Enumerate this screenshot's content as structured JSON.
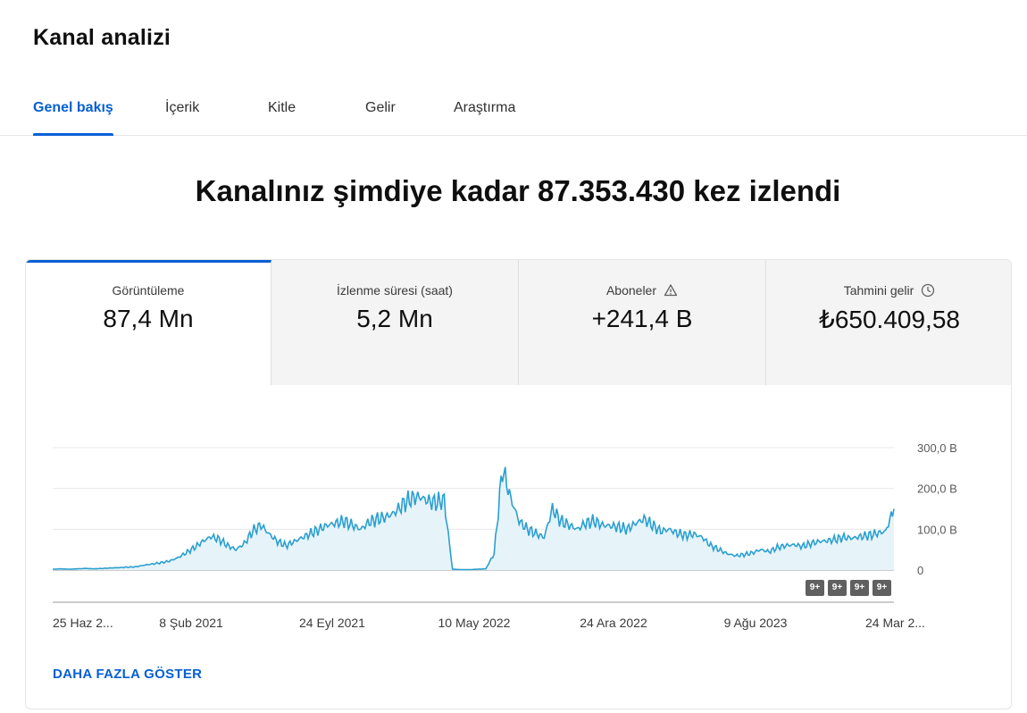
{
  "page": {
    "title": "Kanal analizi"
  },
  "tabs": [
    {
      "label": "Genel bakış",
      "active": true
    },
    {
      "label": "İçerik"
    },
    {
      "label": "Kitle"
    },
    {
      "label": "Gelir"
    },
    {
      "label": "Araştırma"
    }
  ],
  "headline": "Kanalınız şimdiye kadar 87.353.430 kez izlendi",
  "metrics": [
    {
      "label": "Görüntüleme",
      "value": "87,4 Mn",
      "active": true
    },
    {
      "label": "İzlenme süresi (saat)",
      "value": "5,2 Mn"
    },
    {
      "label": "Aboneler",
      "value": "+241,4 B",
      "icon": "warning-icon"
    },
    {
      "label": "Tahmini gelir",
      "value": "₺650.409,58",
      "icon": "clock-icon"
    }
  ],
  "chart_data": {
    "type": "area",
    "y_ticks": [
      "300,0 B",
      "200,0 B",
      "100,0 B",
      "0"
    ],
    "ylim": [
      0,
      300000
    ],
    "x_tick_labels": [
      "25 Haz 2...",
      "8 Şub 2021",
      "24 Eyl 2021",
      "10 May 2022",
      "24 Ara 2022",
      "9 Ağu 2023",
      "24 Mar 2..."
    ],
    "series": [
      {
        "values_thousands": [
          2,
          3,
          2,
          3,
          4,
          3,
          4,
          5,
          6,
          7,
          8,
          12,
          15,
          18,
          22,
          30,
          42,
          55,
          70,
          82,
          75,
          60,
          50,
          65,
          95,
          110,
          88,
          70,
          60,
          70,
          80,
          90,
          100,
          110,
          115,
          120,
          110,
          100,
          118,
          125,
          130,
          140,
          160,
          175,
          180,
          170,
          165,
          172,
          2,
          1,
          1,
          2,
          3,
          40,
          250,
          175,
          120,
          100,
          90,
          80,
          150,
          120,
          110,
          100,
          115,
          120,
          110,
          108,
          105,
          100,
          115,
          125,
          110,
          95,
          100,
          90,
          85,
          88,
          80,
          60,
          50,
          40,
          35,
          38,
          42,
          50,
          45,
          55,
          60,
          62,
          58,
          65,
          70,
          72,
          75,
          80,
          78,
          82,
          85,
          90,
          95,
          150
        ],
        "color": "#2a9fd0"
      }
    ],
    "annotations": [
      "9+",
      "9+",
      "9+",
      "9+"
    ],
    "grid": true
  },
  "show_more": "DAHA FAZLA GÖSTER",
  "colors": {
    "accent": "#065fd4",
    "line": "#2a9fd0",
    "fill": "#e6f4f9"
  }
}
